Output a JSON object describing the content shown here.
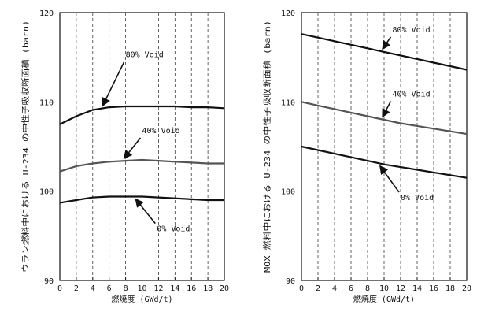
{
  "chart_data": [
    {
      "type": "line",
      "title": "",
      "xlabel": "燃焼度 (GWd/t)",
      "ylabel": "ウラン燃料中における U-234 の中性子吸収断面積 (barn)",
      "xlim": [
        0,
        20
      ],
      "ylim": [
        90,
        120
      ],
      "x_ticks": [
        "0",
        "2",
        "4",
        "6",
        "8",
        "10",
        "12",
        "14",
        "16",
        "18",
        "20"
      ],
      "y_ticks": [
        "90",
        "100",
        "110",
        "120"
      ],
      "grid": "x dashed every 2, y dashed at 100 and 110",
      "x": [
        0,
        2,
        4,
        6,
        8,
        10,
        12,
        14,
        16,
        18,
        20
      ],
      "series": [
        {
          "name": "80% Void",
          "values": [
            107.5,
            108.4,
            109.1,
            109.4,
            109.5,
            109.5,
            109.5,
            109.5,
            109.4,
            109.4,
            109.3
          ],
          "width": 2.2,
          "color": "#111111"
        },
        {
          "name": "40% Void",
          "values": [
            102.2,
            102.8,
            103.1,
            103.3,
            103.4,
            103.5,
            103.4,
            103.3,
            103.2,
            103.1,
            103.1
          ],
          "width": 2.2,
          "color": "#555555"
        },
        {
          "name": "0% Void",
          "values": [
            98.7,
            99.0,
            99.3,
            99.4,
            99.4,
            99.4,
            99.3,
            99.2,
            99.1,
            99.0,
            99.0
          ],
          "width": 2.2,
          "color": "#111111"
        }
      ],
      "annotations": [
        {
          "text": "80% Void",
          "series": 0,
          "x": 5.2,
          "lx": 8.0,
          "ly": 115.0
        },
        {
          "text": "40% Void",
          "series": 1,
          "x": 7.8,
          "lx": 10.0,
          "ly": 106.5
        },
        {
          "text": "0% Void",
          "series": 2,
          "x": 9.2,
          "lx": 11.8,
          "ly": 95.5
        }
      ]
    },
    {
      "type": "line",
      "title": "",
      "xlabel": "燃焼度 (GWd/t)",
      "ylabel": "MOX 燃料中における U-234 の中性子吸収断面積 (barn)",
      "xlim": [
        0,
        20
      ],
      "ylim": [
        90,
        120
      ],
      "x_ticks": [
        "0",
        "2",
        "4",
        "6",
        "8",
        "10",
        "12",
        "14",
        "16",
        "18",
        "20"
      ],
      "y_ticks": [
        "90",
        "100",
        "110",
        "120"
      ],
      "grid": "x dashed every 2, y dashed at 100 and 110",
      "x": [
        0,
        2,
        4,
        6,
        8,
        10,
        12,
        14,
        16,
        18,
        20
      ],
      "series": [
        {
          "name": "80% Void",
          "values": [
            117.6,
            117.2,
            116.8,
            116.4,
            116.0,
            115.6,
            115.2,
            114.8,
            114.4,
            114.0,
            113.6
          ],
          "width": 2.2,
          "color": "#111111"
        },
        {
          "name": "40% Void",
          "values": [
            110.0,
            109.6,
            109.2,
            108.8,
            108.4,
            108.0,
            107.6,
            107.3,
            107.0,
            106.7,
            106.4
          ],
          "width": 2.2,
          "color": "#555555"
        },
        {
          "name": "0% Void",
          "values": [
            105.0,
            104.6,
            104.2,
            103.8,
            103.4,
            103.0,
            102.7,
            102.4,
            102.1,
            101.8,
            101.5
          ],
          "width": 2.2,
          "color": "#111111"
        }
      ],
      "annotations": [
        {
          "text": "80% Void",
          "series": 0,
          "x": 9.8,
          "lx": 11.0,
          "ly": 117.8
        },
        {
          "text": "40% Void",
          "series": 1,
          "x": 9.8,
          "lx": 11.0,
          "ly": 110.6
        },
        {
          "text": "0% Void",
          "series": 2,
          "x": 9.5,
          "lx": 12.0,
          "ly": 99.0
        }
      ]
    }
  ]
}
